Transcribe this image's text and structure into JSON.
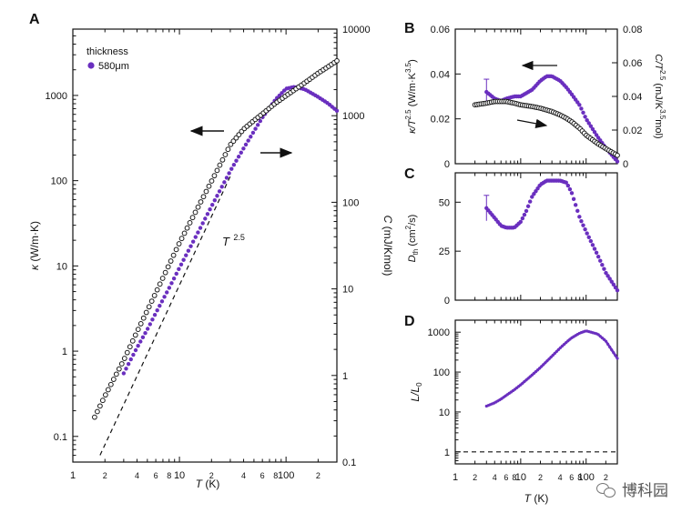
{
  "watermark": {
    "text": "博科园",
    "icon": "wechat-icon"
  },
  "colors": {
    "kappa": "#6a2fbf",
    "heat": "#1a1a1a",
    "axis": "#111111"
  },
  "chart_data": [
    {
      "panel": "A",
      "type": "scatter",
      "xscale": "log",
      "xlim": [
        1,
        300
      ],
      "xlabel_prefix": "T",
      "xlabel_suffix": " (K)",
      "x_ticks": [
        "1",
        "2",
        "4",
        "6",
        "8",
        "10",
        "2",
        "4",
        "6",
        "8",
        "100",
        "2"
      ],
      "y_left": {
        "label_sym": "κ",
        "label_rest": " (W/m·K)",
        "scale": "log",
        "lim": [
          0.05,
          6000
        ],
        "ticks": [
          "0.1",
          "1",
          "10",
          "100",
          "1000"
        ]
      },
      "y_right": {
        "label_sym": "C",
        "label_rest": " (mJ/Kmol)",
        "scale": "log",
        "lim": [
          0.1,
          10000
        ],
        "ticks": [
          "0.1",
          "1",
          "10",
          "100",
          "1000",
          "10000"
        ]
      },
      "legend": {
        "title": "thickness",
        "entry": "580μm",
        "placement": "top-left"
      },
      "annotation": {
        "base": "T",
        "exp": "2.5"
      },
      "series": [
        {
          "name": "580μm",
          "axis": "left",
          "color": "#6a2fbf",
          "marker": "filled",
          "x": [
            3.0,
            3.5,
            4,
            5,
            6,
            8,
            10,
            15,
            20,
            30,
            40,
            50,
            60,
            80,
            100,
            120,
            150,
            200,
            250,
            300
          ],
          "y": [
            0.55,
            0.8,
            1.1,
            1.8,
            2.8,
            5.5,
            9.5,
            25,
            50,
            130,
            240,
            380,
            550,
            900,
            1200,
            1260,
            1180,
            960,
            800,
            660
          ]
        },
        {
          "name": "C",
          "axis": "right",
          "color": "#1a1a1a",
          "marker": "open",
          "x": [
            1.6,
            2,
            3,
            4,
            6,
            10,
            20,
            30,
            40,
            50,
            60,
            80,
            100,
            150,
            200,
            250,
            300
          ],
          "y": [
            0.33,
            0.58,
            1.5,
            3.2,
            9,
            34,
            175,
            460,
            700,
            880,
            1050,
            1400,
            1700,
            2400,
            3100,
            3700,
            4300
          ]
        },
        {
          "name": "T^2.5 guide",
          "axis": "right",
          "style": "dashed",
          "x": [
            1.8,
            30
          ],
          "y": [
            0.12,
            200
          ]
        }
      ]
    },
    {
      "panel": "B",
      "type": "scatter",
      "xscale": "log",
      "xlim": [
        1,
        300
      ],
      "y_left": {
        "label_main": "κ/T",
        "label_exp": "2.5",
        "label_mid": " (W/m·K",
        "label_exp2": "3.5",
        "label_end": ")",
        "scale": "linear",
        "lim": [
          0,
          0.06
        ],
        "ticks": [
          "0",
          "0.02",
          "0.04",
          "0.06"
        ]
      },
      "y_right": {
        "label_main": "C/T",
        "label_exp": "2.5",
        "label_mid": " (mJ/K",
        "label_exp2": "3.5",
        "label_end": "mol)",
        "scale": "linear",
        "lim": [
          0,
          0.08
        ],
        "ticks": [
          "0",
          "0.02",
          "0.04",
          "0.06",
          "0.08"
        ]
      },
      "series": [
        {
          "name": "κ/T^2.5",
          "axis": "left",
          "color": "#6a2fbf",
          "marker": "filled",
          "x": [
            3,
            4,
            5,
            6,
            8,
            10,
            15,
            20,
            25,
            30,
            40,
            50,
            60,
            80,
            100,
            150,
            200,
            300
          ],
          "y": [
            0.032,
            0.029,
            0.028,
            0.029,
            0.03,
            0.03,
            0.033,
            0.037,
            0.039,
            0.039,
            0.037,
            0.034,
            0.031,
            0.026,
            0.02,
            0.012,
            0.007,
            0.001
          ]
        },
        {
          "name": "C/T^2.5",
          "axis": "right",
          "color": "#1a1a1a",
          "marker": "open",
          "x": [
            2,
            3,
            4,
            5,
            6,
            8,
            10,
            15,
            20,
            30,
            40,
            50,
            60,
            80,
            100,
            150,
            200,
            300
          ],
          "y": [
            0.035,
            0.036,
            0.037,
            0.037,
            0.037,
            0.036,
            0.035,
            0.034,
            0.033,
            0.031,
            0.029,
            0.027,
            0.025,
            0.021,
            0.017,
            0.012,
            0.009,
            0.005
          ]
        }
      ]
    },
    {
      "panel": "C",
      "type": "scatter",
      "xscale": "log",
      "xlim": [
        1,
        300
      ],
      "y_left": {
        "label_main": "D",
        "label_sub": "th",
        "label_mid": " (cm",
        "label_exp": "2",
        "label_end": "/s)",
        "scale": "linear",
        "lim": [
          0,
          65
        ],
        "ticks": [
          "0",
          "25",
          "50"
        ]
      },
      "series": [
        {
          "name": "D_th",
          "axis": "left",
          "color": "#6a2fbf",
          "marker": "filled",
          "x": [
            3,
            4,
            5,
            6,
            8,
            10,
            12,
            15,
            20,
            25,
            30,
            40,
            50,
            60,
            70,
            80,
            100,
            150,
            200,
            300
          ],
          "y": [
            47,
            42,
            38,
            37,
            37,
            40,
            45,
            53,
            59,
            61,
            61,
            61,
            60,
            55,
            48,
            42,
            35,
            23,
            14,
            5
          ]
        }
      ]
    },
    {
      "panel": "D",
      "type": "line",
      "xscale": "log",
      "xlim": [
        1,
        300
      ],
      "xlabel_prefix": "T",
      "xlabel_suffix": " (K)",
      "x_ticks": [
        "1",
        "2",
        "4",
        "6",
        "8",
        "10",
        "2",
        "4",
        "6",
        "8",
        "100",
        "2"
      ],
      "y_left": {
        "label_main": "L/L",
        "label_sub": "0",
        "scale": "log",
        "lim": [
          0.5,
          2000
        ],
        "ticks": [
          "1",
          "10",
          "100",
          "1000"
        ]
      },
      "series": [
        {
          "name": "L/L0",
          "axis": "left",
          "color": "#6a2fbf",
          "marker": "filled",
          "x": [
            3,
            4,
            5,
            6,
            8,
            10,
            15,
            20,
            30,
            40,
            50,
            60,
            80,
            100,
            150,
            200,
            300
          ],
          "y": [
            14,
            17,
            21,
            26,
            36,
            48,
            85,
            130,
            250,
            400,
            560,
            720,
            950,
            1080,
            900,
            600,
            220
          ]
        },
        {
          "name": "L/L0 = 1",
          "axis": "left",
          "style": "dashed",
          "x": [
            1,
            300
          ],
          "y": [
            1,
            1
          ]
        }
      ]
    }
  ]
}
